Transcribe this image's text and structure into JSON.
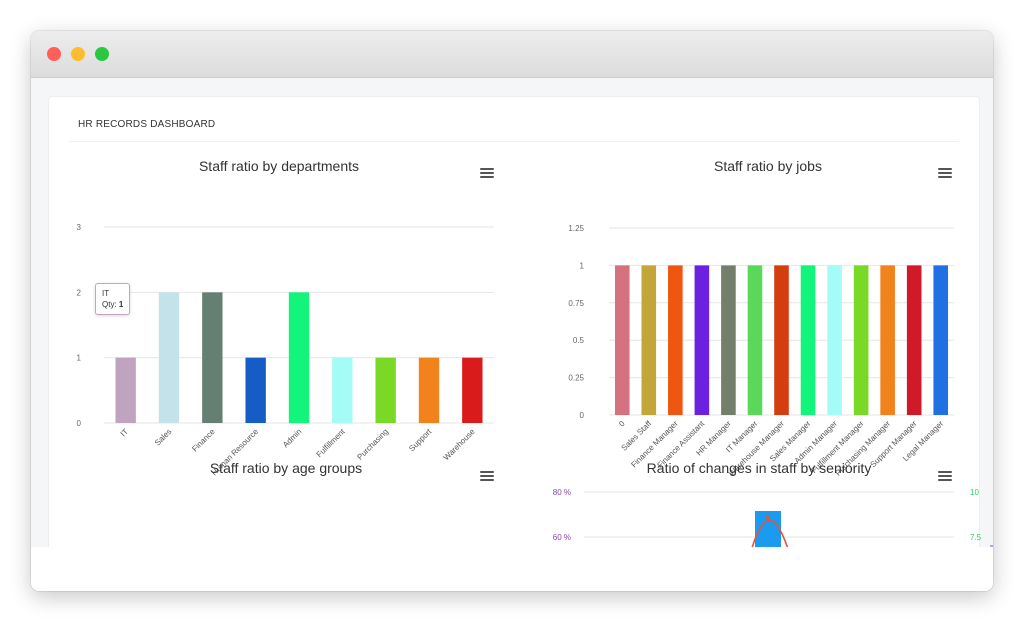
{
  "window": {
    "controls": [
      "close-dot",
      "minimize-dot",
      "maximize-dot"
    ]
  },
  "dashboard": {
    "title": "HR RECORDS DASHBOARD",
    "menu_icon": "hamburger-menu-icon"
  },
  "tooltip": {
    "category": "IT",
    "label": "Qty:",
    "value": "1"
  },
  "chart_data": [
    {
      "type": "bar",
      "title": "Staff ratio by departments",
      "categories": [
        "IT",
        "Sales",
        "Finance",
        "Human Resource",
        "Admin",
        "Fulfillment",
        "Purchasing",
        "Support",
        "Warehouse"
      ],
      "values": [
        1,
        2,
        2,
        1,
        2,
        1,
        1,
        1,
        1
      ],
      "colors": [
        "#bfa3bf",
        "#c4e2ea",
        "#657f73",
        "#155cc4",
        "#12f57a",
        "#a5fbf6",
        "#7ad827",
        "#f2821c",
        "#d91b1b"
      ],
      "ylim": [
        0,
        3
      ],
      "yticks": [
        "0",
        "1",
        "2",
        "3"
      ],
      "grid": true
    },
    {
      "type": "bar",
      "title": "Staff ratio by jobs",
      "categories": [
        "0",
        "Sales Staff",
        "Finance Manager",
        "Finance Assistant",
        "HR Manager",
        "IT Manager",
        "Warehouse Manager",
        "Sales Manager",
        "Admin Manager",
        "Fulfillment Manager",
        "Purchasing Manager",
        "Support Manager",
        "Legal Manager"
      ],
      "values": [
        1,
        1,
        1,
        1,
        1,
        1,
        1,
        1,
        1,
        1,
        1,
        1,
        1
      ],
      "colors": [
        "#d4737f",
        "#c3a63a",
        "#f0560f",
        "#6c20e0",
        "#737f6b",
        "#5bd85a",
        "#d33d0f",
        "#12f57a",
        "#a5fbf6",
        "#7ad827",
        "#f2821c",
        "#d01a28",
        "#1f6fe5"
      ],
      "ylim": [
        0,
        1.25
      ],
      "yticks": [
        "0",
        "0.25",
        "0.5",
        "0.75",
        "1",
        "1.25"
      ],
      "grid": true
    },
    {
      "type": "pie",
      "title": "Staff ratio by age groups"
    },
    {
      "type": "bar",
      "title": "Ratio of changes in staff by seniority",
      "yticks_left": [
        "80 %",
        "60 %"
      ],
      "yticks_right": [
        "10",
        "7.5"
      ],
      "grid": true
    }
  ]
}
